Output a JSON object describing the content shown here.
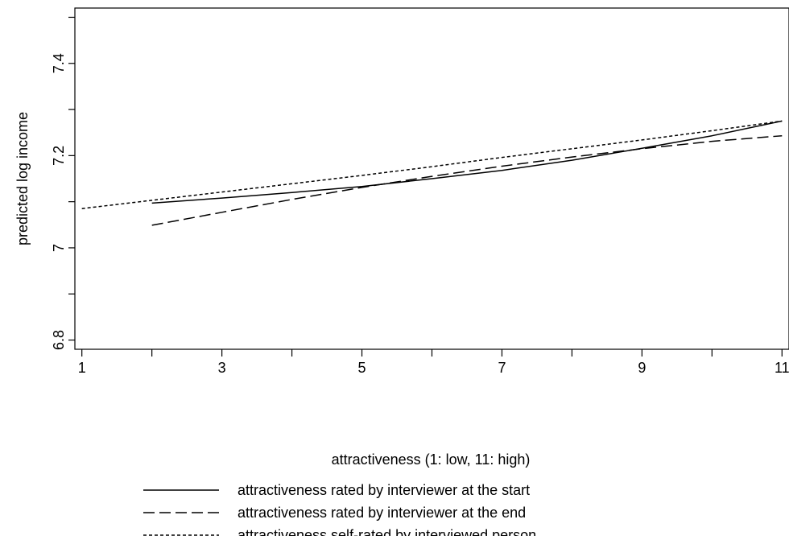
{
  "chart_data": {
    "type": "line",
    "title": "",
    "xlabel": "attractiveness (1: low, 11: high)",
    "ylabel": "predicted log income",
    "xlim": [
      0.9,
      11.1
    ],
    "ylim": [
      6.78,
      7.52
    ],
    "x_ticks": [
      1,
      2,
      3,
      4,
      5,
      6,
      7,
      8,
      9,
      10,
      11
    ],
    "x_tick_labels": [
      "1",
      "",
      "3",
      "",
      "5",
      "",
      "7",
      "",
      "9",
      "",
      "11"
    ],
    "y_ticks": [
      6.8,
      6.9,
      7.0,
      7.1,
      7.2,
      7.3,
      7.4,
      7.5
    ],
    "y_tick_labels": [
      "6.8",
      "",
      "7",
      "",
      "7.2",
      "",
      "7.4",
      ""
    ],
    "grid": false,
    "legend_position": "bottom-center",
    "line_color": "#000000",
    "series": [
      {
        "name": "attractiveness rated by interviewer at the start",
        "style": "solid",
        "x": [
          2,
          3,
          4,
          5,
          6,
          7,
          8,
          9,
          10,
          11
        ],
        "y": [
          7.097,
          7.108,
          7.12,
          7.133,
          7.15,
          7.168,
          7.19,
          7.216,
          7.243,
          7.275
        ]
      },
      {
        "name": "attractiveness rated by interviewer at the end",
        "style": "dashed",
        "x": [
          2,
          3,
          4,
          5,
          6,
          7,
          8,
          9,
          10,
          11
        ],
        "y": [
          7.049,
          7.077,
          7.105,
          7.131,
          7.155,
          7.177,
          7.197,
          7.215,
          7.231,
          7.243
        ]
      },
      {
        "name": "attractiveness self-rated by interviewed person",
        "style": "dotted",
        "x": [
          1,
          2,
          3,
          4,
          5,
          6,
          7,
          8,
          9,
          10,
          11
        ],
        "y": [
          7.085,
          7.103,
          7.121,
          7.139,
          7.157,
          7.176,
          7.196,
          7.215,
          7.234,
          7.254,
          7.275
        ]
      }
    ]
  }
}
